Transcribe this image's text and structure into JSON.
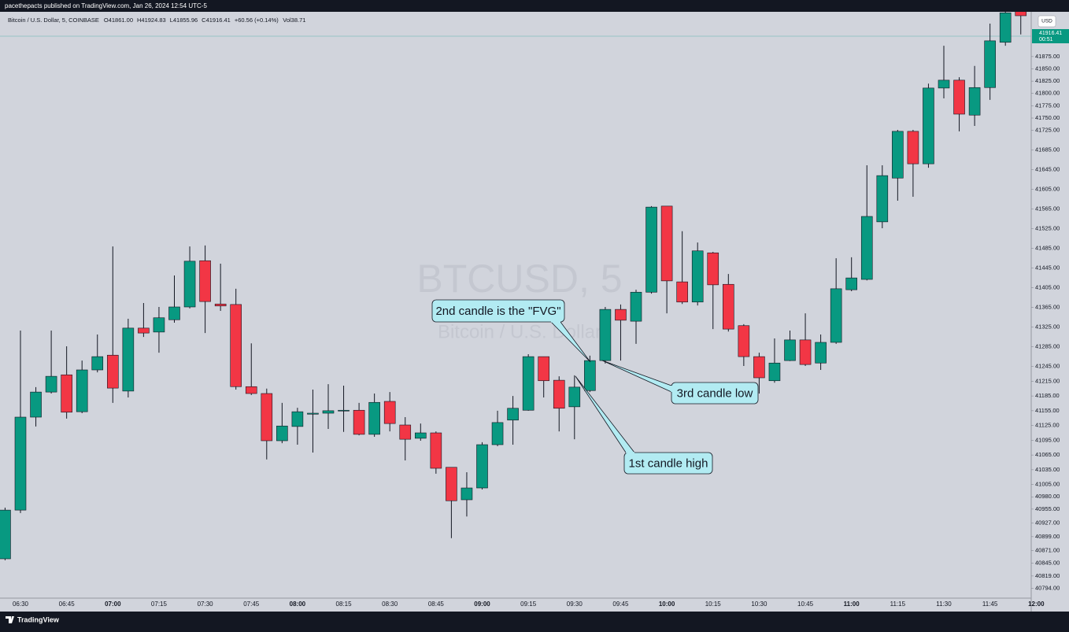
{
  "chart_data": {
    "type": "candlestick",
    "publisher_note": "pacethepacts published on TradingView.com, Jan 26, 2024 12:54 UTC-5",
    "title": "Bitcoin / U.S. Dollar, 5, COINBASE",
    "ohlc_readout": [
      "O41861.00",
      "H41924.83",
      "L41855.96",
      "C41916.41"
    ],
    "change": "+60.56 (+0.14%)",
    "volume": "Vol38.71",
    "watermark": [
      "BTCUSD, 5",
      "Bitcoin / U.S. Dollar"
    ],
    "currency": "USD",
    "last_price": 41916.41,
    "countdown": "00:51",
    "brand": "TradingView",
    "up_color": "#089981",
    "down_color": "#f23645",
    "categories": [
      null,
      "06:30",
      null,
      null,
      "06:45",
      null,
      null,
      "07:00",
      null,
      null,
      "07:15",
      null,
      null,
      "07:30",
      null,
      null,
      "07:45",
      null,
      null,
      "08:00",
      null,
      null,
      "08:15",
      null,
      null,
      "08:30",
      null,
      null,
      "08:45",
      null,
      null,
      "09:00",
      null,
      null,
      "09:15",
      null,
      null,
      "09:30",
      null,
      null,
      "09:45",
      null,
      null,
      "10:00",
      null,
      null,
      "10:15",
      null,
      null,
      "10:30",
      null,
      null,
      "10:45",
      null,
      null,
      "11:00",
      null,
      null,
      "11:15",
      null,
      null,
      "11:30",
      null,
      null,
      "11:45",
      null,
      null,
      "12:00"
    ],
    "open": [
      40854,
      40953,
      41142,
      41193,
      41228,
      41153,
      41238,
      41268,
      41195,
      41323,
      41315,
      41340,
      41366,
      41460,
      41372,
      41371,
      41204,
      41190,
      41094,
      41123,
      41148,
      41150,
      41155,
      41156,
      41107,
      41174,
      41126,
      41099,
      41110,
      41040,
      40974,
      40998,
      41086,
      41136,
      41156,
      41265,
      41217,
      41163,
      41196,
      41257,
      41361,
      41337,
      41396,
      41571,
      41417,
      41376,
      41476,
      41412,
      41328,
      41265,
      41216,
      41257,
      41299,
      41252,
      41294,
      41401,
      41422,
      41539,
      41628,
      41723,
      41657,
      41811,
      41827,
      41756,
      41812,
      41904,
      41968,
      null
    ],
    "high": [
      40958,
      41318,
      41203,
      41318,
      41286,
      41257,
      41310,
      41489,
      41342,
      41374,
      41366,
      41430,
      41489,
      41491,
      41454,
      41403,
      41292,
      41200,
      41171,
      41161,
      41198,
      41209,
      41206,
      41171,
      41190,
      41193,
      41142,
      41129,
      41113,
      41040,
      41030,
      41091,
      41155,
      41185,
      41270,
      41265,
      41225,
      41227,
      41267,
      41366,
      41371,
      41401,
      41571,
      41571,
      41520,
      41497,
      41478,
      41433,
      41331,
      41273,
      41302,
      41318,
      41353,
      41310,
      41465,
      41467,
      41654,
      41654,
      41726,
      41726,
      41820,
      41897,
      41833,
      41856,
      41942,
      41974,
      41974,
      null
    ],
    "low": [
      40851,
      40947,
      41123,
      41190,
      41139,
      41150,
      41233,
      41171,
      41182,
      41305,
      41273,
      41334,
      41363,
      41313,
      41358,
      41198,
      41187,
      41056,
      41089,
      41086,
      41070,
      41118,
      41112,
      41105,
      41102,
      41113,
      41054,
      41094,
      41027,
      40896,
      40940,
      40995,
      41083,
      41086,
      41155,
      41182,
      41113,
      41097,
      41193,
      41251,
      41257,
      41291,
      41393,
      41353,
      41372,
      41369,
      41321,
      41316,
      41246,
      41190,
      41212,
      41256,
      41246,
      41238,
      41291,
      41398,
      41420,
      41526,
      41582,
      41590,
      41649,
      41790,
      41723,
      41734,
      41787,
      41897,
      41920,
      null
    ],
    "close": [
      40953,
      41142,
      41193,
      41225,
      41152,
      41238,
      41265,
      41201,
      41323,
      41313,
      41344,
      41366,
      41459,
      41377,
      41368,
      41204,
      41190,
      41094,
      41124,
      41153,
      41150,
      41155,
      41156,
      41107,
      41172,
      41129,
      41097,
      41110,
      41038,
      40972,
      40998,
      41086,
      41131,
      41160,
      41265,
      41216,
      41160,
      41203,
      41257,
      41361,
      41339,
      41396,
      41569,
      41419,
      41376,
      41480,
      41411,
      41321,
      41265,
      41222,
      41252,
      41299,
      41249,
      41294,
      41403,
      41425,
      41550,
      41633,
      41723,
      41657,
      41811,
      41827,
      41758,
      41812,
      41907,
      41964,
      41958,
      null
    ],
    "ylim": [
      40774,
      41966
    ],
    "yticks": [
      {
        "value": 41875,
        "label": "41875.00"
      },
      {
        "value": 41850,
        "label": "41850.00"
      },
      {
        "value": 41825,
        "label": "41825.00"
      },
      {
        "value": 41800,
        "label": "41800.00"
      },
      {
        "value": 41775,
        "label": "41775.00"
      },
      {
        "value": 41750,
        "label": "41750.00"
      },
      {
        "value": 41725,
        "label": "41725.00"
      },
      {
        "value": 41685,
        "label": "41685.00"
      },
      {
        "value": 41645,
        "label": "41645.00"
      },
      {
        "value": 41605,
        "label": "41605.00"
      },
      {
        "value": 41565,
        "label": "41565.00"
      },
      {
        "value": 41525,
        "label": "41525.00"
      },
      {
        "value": 41485,
        "label": "41485.00"
      },
      {
        "value": 41445,
        "label": "41445.00"
      },
      {
        "value": 41405,
        "label": "41405.00"
      },
      {
        "value": 41365,
        "label": "41365.00"
      },
      {
        "value": 41325,
        "label": "41325.00"
      },
      {
        "value": 41285,
        "label": "41285.00"
      },
      {
        "value": 41245,
        "label": "41245.00"
      },
      {
        "value": 41215,
        "label": "41215.00"
      },
      {
        "value": 41185,
        "label": "41185.00"
      },
      {
        "value": 41155,
        "label": "41155.00"
      },
      {
        "value": 41125,
        "label": "41125.00"
      },
      {
        "value": 41095,
        "label": "41095.00"
      },
      {
        "value": 41065,
        "label": "41065.00"
      },
      {
        "value": 41035,
        "label": "41035.00"
      },
      {
        "value": 41005,
        "label": "41005.00"
      },
      {
        "value": 40980,
        "label": "40980.00"
      },
      {
        "value": 40955,
        "label": "40955.00"
      },
      {
        "value": 40927,
        "label": "40927.00"
      },
      {
        "value": 40899,
        "label": "40899.00"
      },
      {
        "value": 40871,
        "label": "40871.00"
      },
      {
        "value": 40845,
        "label": "40845.00"
      },
      {
        "value": 40819,
        "label": "40819.00"
      },
      {
        "value": 40794,
        "label": "40794.00"
      }
    ],
    "annotations": [
      "2nd candle is the \"FVG\"",
      "3rd candle low",
      "1st candle high"
    ]
  }
}
